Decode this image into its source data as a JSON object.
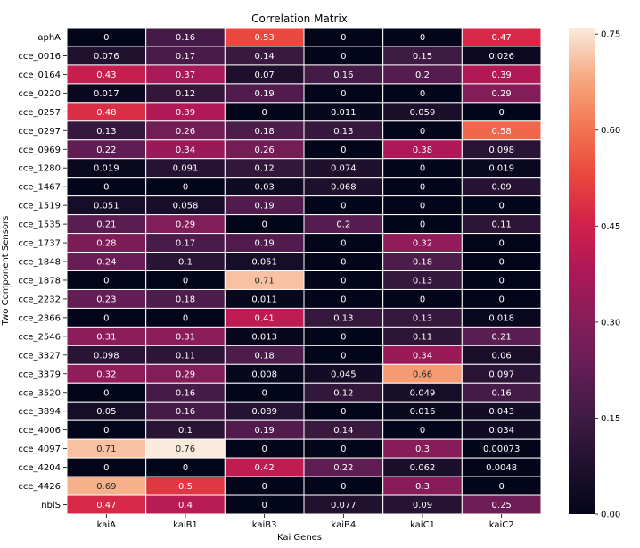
{
  "chart_data": {
    "type": "heatmap",
    "title": "Correlation Matrix",
    "xlabel": "Kai Genes",
    "ylabel": "Two Component Sensors",
    "columns": [
      "kaiA",
      "kaiB1",
      "kaiB3",
      "kaiB4",
      "kaiC1",
      "kaiC2"
    ],
    "rows": [
      "aphA",
      "cce_0016",
      "cce_0164",
      "cce_0220",
      "cce_0257",
      "cce_0297",
      "cce_0969",
      "cce_1280",
      "cce_1467",
      "cce_1519",
      "cce_1535",
      "cce_1737",
      "cce_1848",
      "cce_1878",
      "cce_2232",
      "cce_2366",
      "cce_2546",
      "cce_3327",
      "cce_3379",
      "cce_3520",
      "cce_3894",
      "cce_4006",
      "cce_4097",
      "cce_4204",
      "cce_4426",
      "nblS"
    ],
    "values": [
      [
        0,
        0.16,
        0.53,
        0,
        0,
        0.47
      ],
      [
        0.076,
        0.17,
        0.14,
        0,
        0.15,
        0.026
      ],
      [
        0.43,
        0.37,
        0.07,
        0.16,
        0.2,
        0.39
      ],
      [
        0.017,
        0.12,
        0.19,
        0,
        0,
        0.29
      ],
      [
        0.48,
        0.39,
        0,
        0.011,
        0.059,
        0
      ],
      [
        0.13,
        0.26,
        0.18,
        0.13,
        0,
        0.58
      ],
      [
        0.22,
        0.34,
        0.26,
        0,
        0.38,
        0.098
      ],
      [
        0.019,
        0.091,
        0.12,
        0.074,
        0,
        0.019
      ],
      [
        0,
        0,
        0.03,
        0.068,
        0,
        0.09
      ],
      [
        0.051,
        0.058,
        0.19,
        0,
        0,
        0
      ],
      [
        0.21,
        0.29,
        0,
        0.2,
        0,
        0.11
      ],
      [
        0.28,
        0.17,
        0.19,
        0,
        0.32,
        0
      ],
      [
        0.24,
        0.1,
        0.051,
        0,
        0.18,
        0
      ],
      [
        0,
        0,
        0.71,
        0,
        0.13,
        0
      ],
      [
        0.23,
        0.18,
        0.011,
        0,
        0,
        0
      ],
      [
        0,
        0,
        0.41,
        0.13,
        0.13,
        0.018
      ],
      [
        0.31,
        0.31,
        0.013,
        0,
        0.11,
        0.21
      ],
      [
        0.098,
        0.11,
        0.18,
        0,
        0.34,
        0.06
      ],
      [
        0.32,
        0.29,
        0.008,
        0.045,
        0.66,
        0.097
      ],
      [
        0,
        0.16,
        0,
        0.12,
        0.049,
        0.16
      ],
      [
        0.05,
        0.16,
        0.089,
        0,
        0.016,
        0.043
      ],
      [
        0,
        0.1,
        0.19,
        0.14,
        0,
        0.034
      ],
      [
        0.71,
        0.76,
        0,
        0,
        0.3,
        0.00073
      ],
      [
        0,
        0,
        0.42,
        0.22,
        0.062,
        0.0048
      ],
      [
        0.69,
        0.5,
        0,
        0,
        0.3,
        0
      ],
      [
        0.47,
        0.4,
        0,
        0.077,
        0.09,
        0.25
      ]
    ],
    "labels": [
      [
        "0",
        "0.16",
        "0.53",
        "0",
        "0",
        "0.47"
      ],
      [
        "0.076",
        "0.17",
        "0.14",
        "0",
        "0.15",
        "0.026"
      ],
      [
        "0.43",
        "0.37",
        "0.07",
        "0.16",
        "0.2",
        "0.39"
      ],
      [
        "0.017",
        "0.12",
        "0.19",
        "0",
        "0",
        "0.29"
      ],
      [
        "0.48",
        "0.39",
        "0",
        "0.011",
        "0.059",
        "0"
      ],
      [
        "0.13",
        "0.26",
        "0.18",
        "0.13",
        "0",
        "0.58"
      ],
      [
        "0.22",
        "0.34",
        "0.26",
        "0",
        "0.38",
        "0.098"
      ],
      [
        "0.019",
        "0.091",
        "0.12",
        "0.074",
        "0",
        "0.019"
      ],
      [
        "0",
        "0",
        "0.03",
        "0.068",
        "0",
        "0.09"
      ],
      [
        "0.051",
        "0.058",
        "0.19",
        "0",
        "0",
        "0"
      ],
      [
        "0.21",
        "0.29",
        "0",
        "0.2",
        "0",
        "0.11"
      ],
      [
        "0.28",
        "0.17",
        "0.19",
        "0",
        "0.32",
        "0"
      ],
      [
        "0.24",
        "0.1",
        "0.051",
        "0",
        "0.18",
        "0"
      ],
      [
        "0",
        "0",
        "0.71",
        "0",
        "0.13",
        "0"
      ],
      [
        "0.23",
        "0.18",
        "0.011",
        "0",
        "0",
        "0"
      ],
      [
        "0",
        "0",
        "0.41",
        "0.13",
        "0.13",
        "0.018"
      ],
      [
        "0.31",
        "0.31",
        "0.013",
        "0",
        "0.11",
        "0.21"
      ],
      [
        "0.098",
        "0.11",
        "0.18",
        "0",
        "0.34",
        "0.06"
      ],
      [
        "0.32",
        "0.29",
        "0.008",
        "0.045",
        "0.66",
        "0.097"
      ],
      [
        "0",
        "0.16",
        "0",
        "0.12",
        "0.049",
        "0.16"
      ],
      [
        "0.05",
        "0.16",
        "0.089",
        "0",
        "0.016",
        "0.043"
      ],
      [
        "0",
        "0.1",
        "0.19",
        "0.14",
        "0",
        "0.034"
      ],
      [
        "0.71",
        "0.76",
        "0",
        "0",
        "0.3",
        "0.00073"
      ],
      [
        "0",
        "0",
        "0.42",
        "0.22",
        "0.062",
        "0.0048"
      ],
      [
        "0.69",
        "0.5",
        "0",
        "0",
        "0.3",
        "0"
      ],
      [
        "0.47",
        "0.4",
        "0",
        "0.077",
        "0.09",
        "0.25"
      ]
    ],
    "colorbar": {
      "min": 0,
      "max": 0.76,
      "ticks": [
        0.0,
        0.15,
        0.3,
        0.45,
        0.6,
        0.75
      ],
      "tick_labels": [
        "0.00",
        "0.15",
        "0.30",
        "0.45",
        "0.60",
        "0.75"
      ]
    },
    "colormap": "rocket",
    "gridlines": "white cell separators",
    "legend": "colorbar at right"
  }
}
